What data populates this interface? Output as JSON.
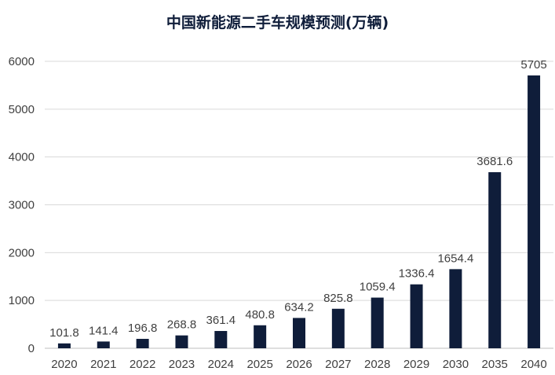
{
  "chart_data": {
    "type": "bar",
    "title": "中国新能源二手车规模预测(万辆)",
    "xlabel": "",
    "ylabel": "",
    "categories": [
      "2020",
      "2021",
      "2022",
      "2023",
      "2024",
      "2025",
      "2026",
      "2027",
      "2028",
      "2029",
      "2030",
      "2035",
      "2040"
    ],
    "values": [
      101.8,
      141.4,
      196.8,
      268.8,
      361.4,
      480.8,
      634.2,
      825.8,
      1059.4,
      1336.4,
      1654.4,
      3681.6,
      5705
    ],
    "data_labels": [
      "101.8",
      "141.4",
      "196.8",
      "268.8",
      "361.4",
      "480.8",
      "634.2",
      "825.8",
      "1059.4",
      "1336.4",
      "1654.4",
      "3681.6",
      "5705"
    ],
    "ylim": [
      0,
      6000
    ],
    "yticks": [
      0,
      1000,
      2000,
      3000,
      4000,
      5000,
      6000
    ],
    "ytick_labels": [
      "0",
      "1000",
      "2000",
      "3000",
      "4000",
      "5000",
      "6000"
    ],
    "grid": true,
    "legend": "none",
    "bar_color": "#0f1d3a"
  }
}
